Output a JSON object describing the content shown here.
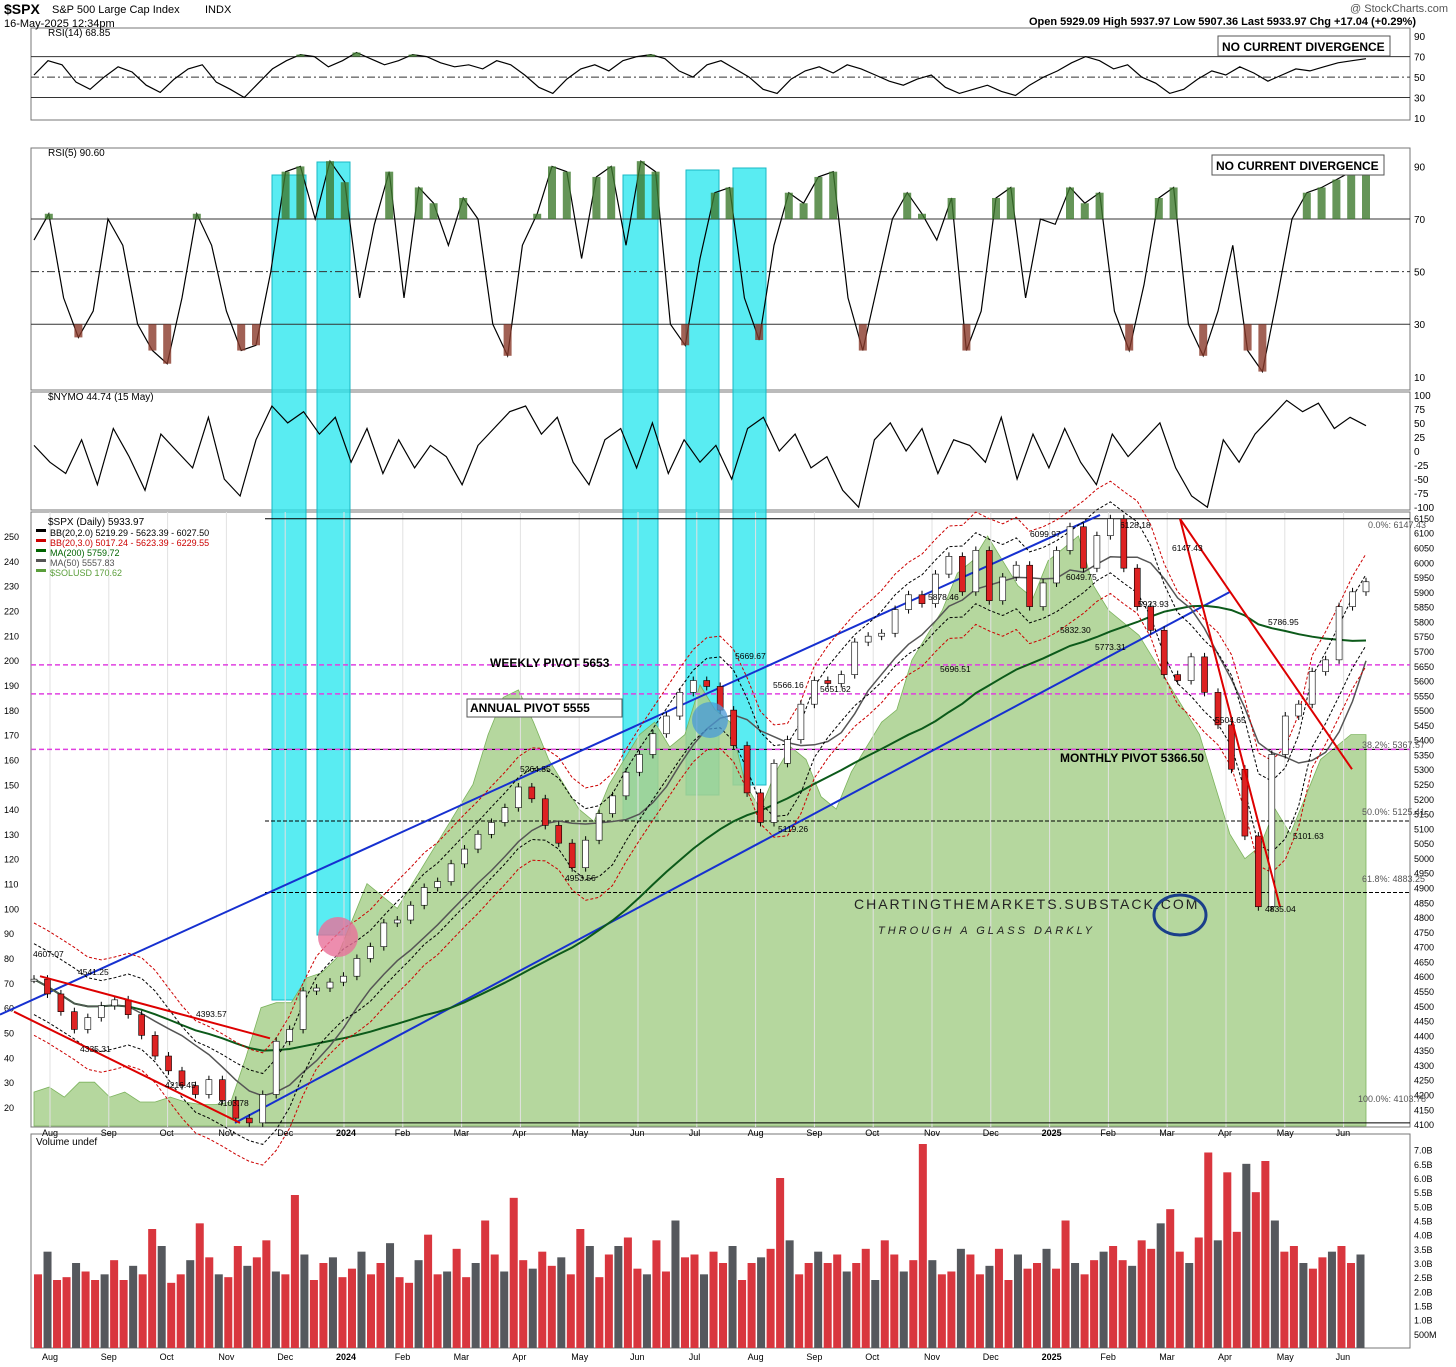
{
  "header": {
    "symbol": "$SPX",
    "name": "S&P 500 Large Cap Index",
    "exchange": "INDX",
    "date": "16-May-2025 12:34pm",
    "copyright": "@ StockCharts.com",
    "quote": "Open 5929.09  High 5937.97  Low 5907.36  Last 5933.97  Chg +17.04 (+0.29%)"
  },
  "chart_data": [
    {
      "type": "line",
      "title": "RSI(14) 68.85",
      "annotation": "NO CURRENT DIVERGENCE",
      "y_ticks": [
        10,
        30,
        50,
        70,
        90
      ],
      "ylim": [
        8,
        98
      ],
      "levels": [
        70,
        50,
        30
      ],
      "series": [
        {
          "values": [
            52,
            66,
            62,
            45,
            38,
            50,
            60,
            55,
            42,
            35,
            48,
            58,
            62,
            45,
            38,
            30,
            44,
            58,
            66,
            72,
            70,
            60,
            66,
            74,
            68,
            62,
            66,
            72,
            70,
            64,
            60,
            62,
            58,
            66,
            62,
            52,
            40,
            34,
            48,
            58,
            62,
            56,
            66,
            70,
            72,
            68,
            56,
            50,
            62,
            66,
            58,
            50,
            38,
            34,
            48,
            56,
            60,
            54,
            62,
            58,
            52,
            46,
            42,
            48,
            52,
            40,
            34,
            38,
            42,
            36,
            32,
            42,
            50,
            56,
            64,
            70,
            66,
            58,
            62,
            50,
            44,
            34,
            38,
            48,
            56,
            52,
            60,
            54,
            46,
            52,
            58,
            56,
            60,
            64,
            66,
            68
          ]
        }
      ]
    },
    {
      "type": "line",
      "title": "RSI(5) 90.60",
      "annotation": "NO CURRENT DIVERGENCE",
      "y_ticks": [
        10,
        30,
        50,
        70,
        90
      ],
      "ylim": [
        5,
        97
      ],
      "levels": [
        70,
        50,
        30
      ],
      "series": [
        {
          "values": [
            62,
            72,
            40,
            25,
            35,
            70,
            60,
            30,
            20,
            15,
            40,
            72,
            60,
            35,
            20,
            22,
            50,
            88,
            90,
            70,
            92,
            84,
            40,
            68,
            88,
            40,
            82,
            76,
            60,
            78,
            70,
            30,
            18,
            60,
            72,
            90,
            88,
            55,
            86,
            90,
            60,
            92,
            88,
            30,
            22,
            55,
            80,
            82,
            40,
            24,
            60,
            80,
            76,
            86,
            88,
            40,
            20,
            45,
            70,
            80,
            72,
            62,
            78,
            20,
            35,
            78,
            82,
            40,
            70,
            68,
            82,
            76,
            80,
            35,
            20,
            45,
            78,
            82,
            30,
            18,
            35,
            60,
            20,
            12,
            40,
            70,
            80,
            82,
            85,
            88,
            90
          ]
        }
      ]
    },
    {
      "type": "line",
      "title": "$NYMO 44.74 (15 May)",
      "y_ticks": [
        -100,
        -75,
        -50,
        -25,
        0,
        25,
        50,
        75,
        100
      ],
      "ylim": [
        -105,
        105
      ],
      "series": [
        {
          "values": [
            10,
            -20,
            -40,
            20,
            -60,
            40,
            -10,
            -70,
            30,
            0,
            -30,
            60,
            -50,
            -80,
            20,
            80,
            50,
            70,
            30,
            60,
            -20,
            40,
            -40,
            20,
            -30,
            10,
            -10,
            -60,
            10,
            40,
            70,
            80,
            30,
            60,
            -20,
            -60,
            20,
            40,
            -30,
            50,
            -40,
            20,
            -20,
            10,
            -50,
            40,
            60,
            0,
            30,
            -30,
            -10,
            -70,
            -100,
            20,
            50,
            0,
            40,
            -40,
            20,
            10,
            -20,
            60,
            -50,
            30,
            -30,
            40,
            -20,
            -60,
            30,
            -10,
            20,
            50,
            -30,
            -80,
            -100,
            20,
            -20,
            30,
            60,
            90,
            70,
            85,
            40,
            60,
            45
          ]
        }
      ]
    },
    {
      "type": "line",
      "title": "$SPX (Daily) 5933.97",
      "legend": [
        {
          "label": "BB(20,2.0) 5219.29 - 5623.39 - 6027.50",
          "color": "#000000"
        },
        {
          "label": "BB(20,3.0) 5017.24 - 5623.39 - 6229.55",
          "color": "#cc0000"
        },
        {
          "label": "MA(200) 5759.72",
          "color": "#006400"
        },
        {
          "label": "MA(50) 5557.83",
          "color": "#555555"
        },
        {
          "label": "$SOLUSD 170.62",
          "color": "#5a9e3a"
        }
      ],
      "y_ticks_right": [
        4100,
        4150,
        4200,
        4250,
        4300,
        4350,
        4400,
        4450,
        4500,
        4550,
        4600,
        4650,
        4700,
        4750,
        4800,
        4850,
        4900,
        4950,
        5000,
        5050,
        5100,
        5150,
        5200,
        5250,
        5300,
        5350,
        5400,
        5450,
        5500,
        5550,
        5600,
        5650,
        5700,
        5750,
        5800,
        5850,
        5900,
        5950,
        6000,
        6050,
        6100,
        6150
      ],
      "y_ticks_left": [
        20,
        30,
        40,
        50,
        60,
        70,
        80,
        90,
        100,
        110,
        120,
        130,
        140,
        150,
        160,
        170,
        180,
        190,
        200,
        210,
        220,
        230,
        240,
        250
      ],
      "x_ticks": [
        "Aug",
        "Sep",
        "Oct",
        "Nov",
        "Dec",
        "2024",
        "Feb",
        "Mar",
        "Apr",
        "May",
        "Jun",
        "Jul",
        "Aug",
        "Sep",
        "Oct",
        "Nov",
        "Dec",
        "2025",
        "Feb",
        "Mar",
        "Apr",
        "May",
        "Jun"
      ],
      "ylim": [
        4090,
        6170
      ],
      "price": [
        4590,
        4540,
        4480,
        4420,
        4460,
        4500,
        4520,
        4470,
        4400,
        4330,
        4280,
        4230,
        4200,
        4250,
        4180,
        4120,
        4104,
        4200,
        4380,
        4420,
        4550,
        4560,
        4580,
        4600,
        4660,
        4700,
        4780,
        4790,
        4840,
        4900,
        4920,
        4980,
        5030,
        5080,
        5120,
        5170,
        5240,
        5200,
        5110,
        5050,
        4967,
        5060,
        5150,
        5210,
        5290,
        5350,
        5420,
        5480,
        5560,
        5600,
        5580,
        5500,
        5380,
        5220,
        5120,
        5320,
        5400,
        5520,
        5600,
        5590,
        5620,
        5730,
        5750,
        5760,
        5840,
        5890,
        5860,
        5960,
        6020,
        5900,
        6040,
        5870,
        5950,
        5990,
        5850,
        5930,
        6040,
        6120,
        5980,
        6090,
        6147,
        5980,
        5850,
        5770,
        5620,
        5600,
        5680,
        5560,
        5450,
        5300,
        5074,
        4835,
        5350,
        5480,
        5520,
        5630,
        5670,
        5850,
        5900,
        5934
      ],
      "solusd": [
        26,
        28,
        24,
        30,
        30,
        24,
        26,
        22,
        22,
        24,
        22,
        21,
        21,
        22,
        40,
        60,
        62,
        62,
        72,
        74,
        80,
        95,
        110,
        105,
        100,
        110,
        120,
        130,
        140,
        150,
        170,
        185,
        188,
        175,
        160,
        150,
        140,
        135,
        150,
        160,
        170,
        175,
        165,
        170,
        190,
        180,
        175,
        150,
        140,
        155,
        165,
        160,
        145,
        140,
        155,
        165,
        175,
        180,
        200,
        210,
        220,
        235,
        240,
        250,
        240,
        230,
        225,
        240,
        245,
        250,
        230,
        220,
        215,
        210,
        200,
        190,
        180,
        170,
        150,
        130,
        120,
        125,
        140,
        130,
        145,
        160,
        165,
        170,
        170
      ],
      "annotations": [
        "WEEKLY PIVOT 5653",
        "ANNUAL PIVOT 5555",
        "MONTHLY PIVOT 5366.50",
        "0.0%: 6147.43",
        "38.2%: 5367.57",
        "50.0%: 5125.41",
        "61.8%: 4883.25",
        "100.0%: 4103.78"
      ],
      "swing_labels": [
        "4607.07",
        "4541.25",
        "4393.57",
        "4335.31",
        "4216.45",
        "4103.78",
        "5264.85",
        "4953.56",
        "5669.67",
        "5566.16",
        "5119.26",
        "5651.62",
        "5878.46",
        "5696.51",
        "6099.97",
        "6049.75",
        "5832.30",
        "6128.18",
        "6147.43",
        "5923.93",
        "5773.31",
        "5786.95",
        "5504.65",
        "5101.63",
        "4835.04"
      ],
      "watermark": [
        "CHARTINGTHEMARKETS.SUBSTACK.COM",
        "THROUGH A GLASS DARKLY"
      ]
    },
    {
      "type": "bar",
      "title": "Volume undef",
      "y_ticks": [
        "7.0B",
        "6.5B",
        "6.0B",
        "5.5B",
        "5.0B",
        "4.5B",
        "4.0B",
        "3.5B",
        "3.0B",
        "2.5B",
        "2.0B",
        "1.5B",
        "1.0B",
        "500M"
      ],
      "ylim": [
        0,
        7.2
      ],
      "values": [
        2.6,
        3.4,
        2.4,
        2.5,
        3.0,
        2.7,
        2.4,
        2.6,
        3.1,
        2.4,
        2.9,
        2.6,
        4.2,
        3.6,
        2.3,
        2.6,
        3.1,
        4.4,
        3.2,
        2.6,
        2.5,
        3.6,
        2.9,
        3.2,
        3.8,
        2.7,
        2.6,
        5.4,
        3.3,
        2.4,
        3.0,
        3.2,
        2.5,
        2.8,
        3.4,
        2.6,
        3.0,
        3.7,
        2.5,
        2.3,
        3.1,
        4.0,
        2.6,
        2.7,
        3.5,
        2.5,
        3.0,
        4.5,
        3.3,
        2.7,
        5.3,
        3.1,
        2.8,
        3.4,
        2.9,
        3.2,
        2.6,
        4.2,
        3.6,
        2.5,
        3.3,
        3.6,
        3.9,
        2.8,
        2.6,
        3.8,
        2.7,
        4.5,
        3.2,
        3.3,
        2.6,
        3.4,
        3.0,
        3.6,
        2.4,
        3.0,
        3.2,
        3.5,
        6.0,
        3.8,
        2.6,
        3.0,
        3.4,
        3.0,
        3.3,
        2.7,
        3.0,
        3.5,
        2.4,
        3.8,
        3.3,
        2.7,
        3.1,
        7.2,
        3.1,
        2.6,
        2.7,
        3.5,
        3.3,
        2.6,
        2.9,
        3.5,
        2.4,
        3.3,
        2.8,
        3.0,
        3.5,
        2.8,
        4.5,
        3.0,
        2.6,
        3.1,
        3.4,
        3.6,
        3.1,
        2.9,
        3.8,
        3.5,
        4.4,
        4.9,
        3.4,
        3.0,
        3.9,
        6.9,
        3.8,
        6.2,
        4.1,
        6.5,
        5.5,
        6.6,
        4.5,
        3.4,
        3.6,
        3.0,
        2.8,
        3.2,
        3.4,
        3.6,
        3.0,
        3.3
      ]
    }
  ]
}
